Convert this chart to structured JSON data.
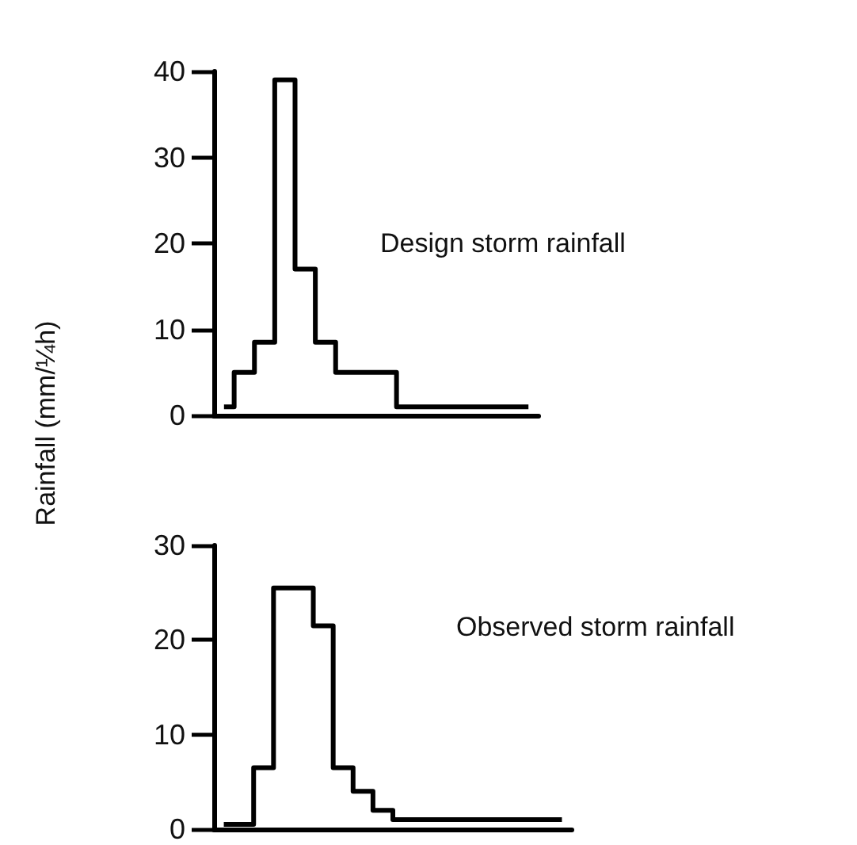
{
  "chart_data": [
    {
      "type": "step",
      "ylabel": "Rainfall (mm/¼h)",
      "annotations": [
        "Design storm rainfall"
      ],
      "categories": [
        null,
        null,
        null,
        null,
        null,
        null,
        null,
        null,
        null,
        null,
        null,
        null,
        null,
        null,
        null,
        null
      ],
      "series": [
        {
          "color": "#000000",
          "values": [
            1,
            5,
            8.5,
            39,
            17,
            8.5,
            5,
            5,
            5,
            1,
            1,
            1,
            1,
            1,
            1,
            1
          ]
        }
      ],
      "ylim": [
        0,
        40
      ],
      "yticks": [
        0,
        10,
        20,
        30,
        40
      ],
      "grid": false,
      "tick_labels": "y",
      "marker": "none",
      "line_style": "solid"
    },
    {
      "type": "step",
      "annotations": [
        "Observed storm rainfall"
      ],
      "categories": [
        null,
        null,
        null,
        null,
        null,
        null,
        null,
        null,
        null,
        null,
        null,
        null,
        null,
        null,
        null,
        null,
        null,
        null
      ],
      "series": [
        {
          "color": "#000000",
          "values": [
            0.5,
            0.5,
            6.5,
            25.5,
            25.5,
            21.5,
            6.5,
            4,
            2,
            1,
            1,
            1,
            1,
            1,
            1,
            1,
            1,
            1
          ]
        }
      ],
      "ylim": [
        0,
        30
      ],
      "yticks": [
        0,
        10,
        20,
        30
      ],
      "grid": false,
      "tick_labels": "y",
      "marker": "none",
      "line_style": "solid"
    }
  ]
}
